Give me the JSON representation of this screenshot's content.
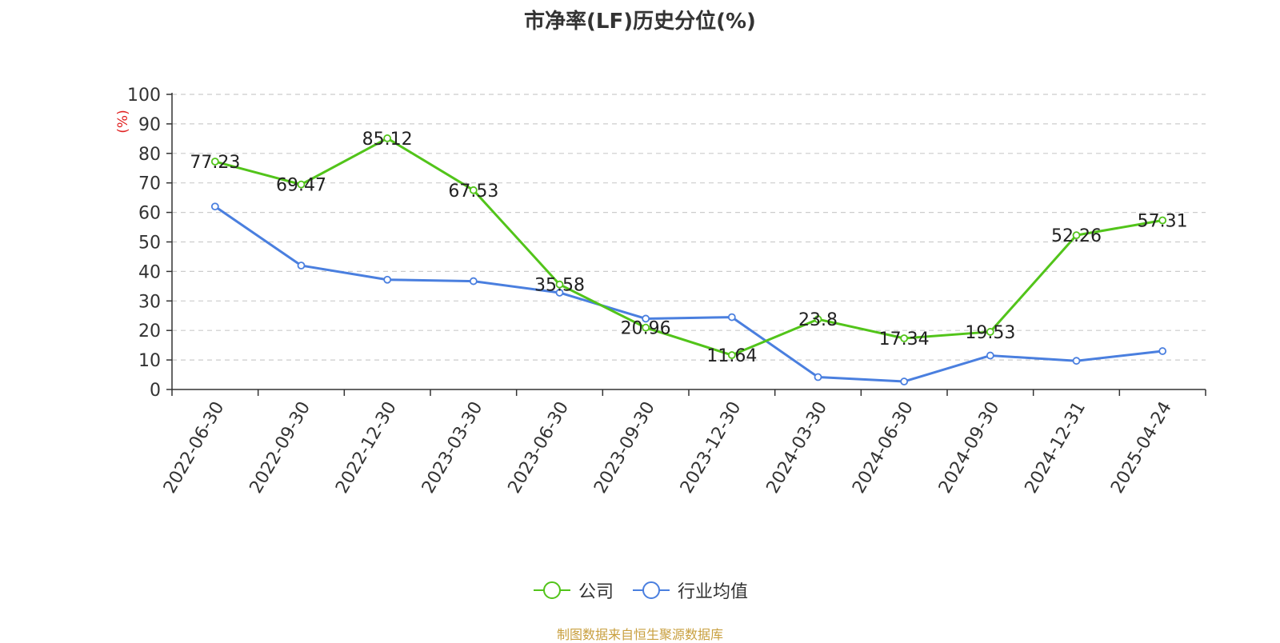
{
  "chart_data": {
    "type": "line",
    "title": "市净率(LF)历史分位(%)",
    "ylabel": "(%)",
    "xlabel": "",
    "ylim": [
      0,
      100
    ],
    "yticks": [
      0,
      10,
      20,
      30,
      40,
      50,
      60,
      70,
      80,
      90,
      100
    ],
    "grid": true,
    "legend_position": "bottom",
    "categories": [
      "2022-06-30",
      "2022-09-30",
      "2022-12-30",
      "2023-03-30",
      "2023-06-30",
      "2023-09-30",
      "2023-12-30",
      "2024-03-30",
      "2024-06-30",
      "2024-09-30",
      "2024-12-31",
      "2025-04-24"
    ],
    "series": [
      {
        "name": "公司",
        "color": "#52c41a",
        "values": [
          77.23,
          69.47,
          85.12,
          67.53,
          35.58,
          20.96,
          11.64,
          23.8,
          17.34,
          19.53,
          52.26,
          57.31
        ],
        "labels": [
          "77.23",
          "69.47",
          "85.12",
          "67.53",
          "35.58",
          "20.96",
          "11.64",
          "23.8",
          "17.34",
          "19.53",
          "52.26",
          "57.31"
        ]
      },
      {
        "name": "行业均值",
        "color": "#4a7fdf",
        "values": [
          62,
          42,
          37.2,
          36.7,
          32.8,
          24,
          24.5,
          4.2,
          2.7,
          11.5,
          9.7,
          13
        ]
      }
    ]
  },
  "footer": {
    "source": "制图数据来自恒生聚源数据库"
  }
}
